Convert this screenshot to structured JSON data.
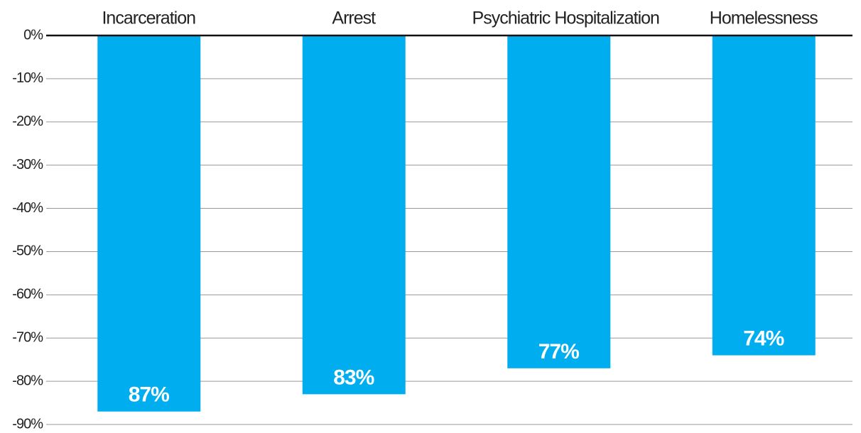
{
  "chart_data": {
    "type": "bar",
    "categories": [
      "Incarceration",
      "Arrest",
      "Psychiatric Hospitalization",
      "Homelessness"
    ],
    "values": [
      -87,
      -83,
      -77,
      -74
    ],
    "value_labels": [
      "87%",
      "83%",
      "77%",
      "74%"
    ],
    "color": "#00aeef",
    "ylim": [
      -90,
      0
    ],
    "yticks": [
      {
        "value": 0,
        "label": "0%"
      },
      {
        "value": -10,
        "label": "-10%"
      },
      {
        "value": -20,
        "label": "-20%"
      },
      {
        "value": -30,
        "label": "-30%"
      },
      {
        "value": -40,
        "label": "-40%"
      },
      {
        "value": -50,
        "label": "-50%"
      },
      {
        "value": -60,
        "label": "-60%"
      },
      {
        "value": -70,
        "label": "-70%"
      },
      {
        "value": -80,
        "label": "-80%"
      },
      {
        "value": -90,
        "label": "-90%"
      }
    ],
    "grid": true
  }
}
